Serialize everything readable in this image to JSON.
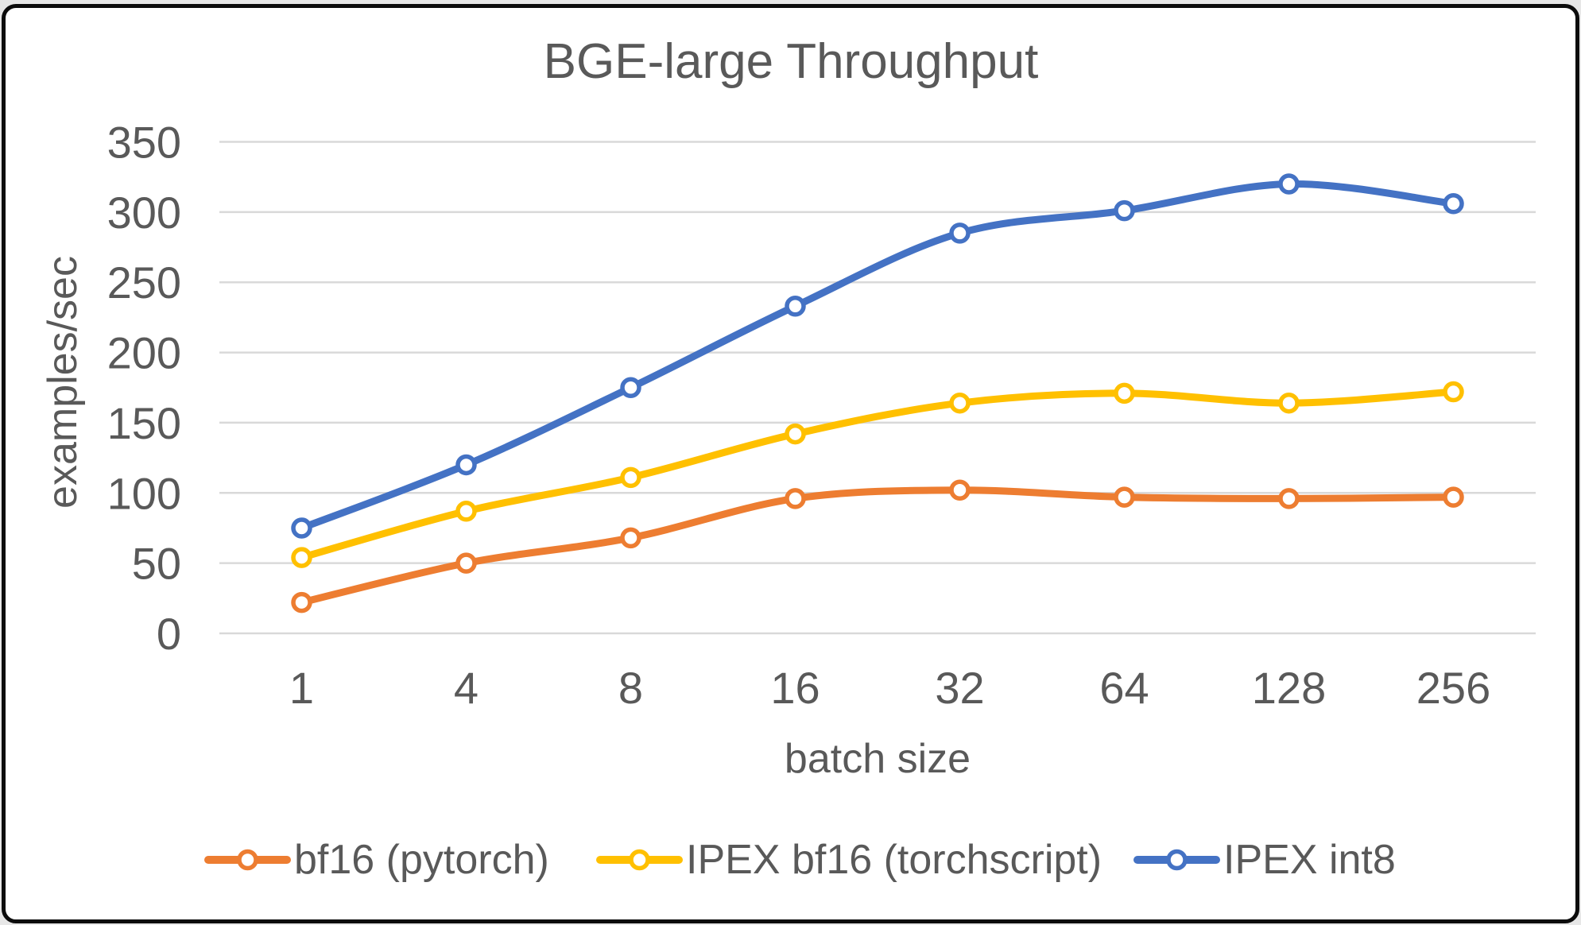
{
  "page": {
    "card_background": "#ffffff",
    "card_border_color": "#0c0c0c",
    "outer_background": "#e7e7e7"
  },
  "chart_data": {
    "type": "line",
    "title": "BGE-large Throughput",
    "xlabel": "batch size",
    "ylabel": "examples/sec",
    "categories": [
      "1",
      "4",
      "8",
      "16",
      "32",
      "64",
      "128",
      "256"
    ],
    "y_ticks": [
      0,
      50,
      100,
      150,
      200,
      250,
      300,
      350
    ],
    "ylim": [
      0,
      350
    ],
    "grid": true,
    "legend_position": "bottom",
    "marker": "open-circle",
    "text_color": "#595959",
    "grid_color": "#D9D9D9",
    "series": [
      {
        "name": "bf16 (pytorch)",
        "color": "#ED7D31",
        "values": [
          22,
          50,
          68,
          96,
          102,
          97,
          96,
          97
        ]
      },
      {
        "name": "IPEX bf16 (torchscript)",
        "color": "#FFC000",
        "values": [
          54,
          87,
          111,
          142,
          164,
          171,
          164,
          172
        ]
      },
      {
        "name": "IPEX int8",
        "color": "#4472C4",
        "values": [
          75,
          120,
          175,
          233,
          285,
          301,
          320,
          306
        ]
      }
    ]
  }
}
